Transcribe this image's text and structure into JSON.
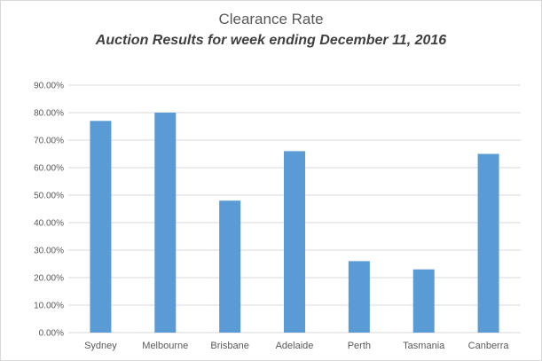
{
  "chart_data": {
    "type": "bar",
    "title": "Clearance Rate",
    "subtitle": "Auction Results for week ending December 11, 2016",
    "xlabel": "",
    "ylabel": "",
    "categories": [
      "Sydney",
      "Melbourne",
      "Brisbane",
      "Adelaide",
      "Perth",
      "Tasmania",
      "Canberra"
    ],
    "values": [
      77.0,
      80.0,
      48.0,
      66.0,
      26.0,
      23.0,
      65.0
    ],
    "ylim": [
      0,
      90
    ],
    "yticks": [
      "0.00%",
      "10.00%",
      "20.00%",
      "30.00%",
      "40.00%",
      "50.00%",
      "60.00%",
      "70.00%",
      "80.00%",
      "90.00%"
    ],
    "grid": true,
    "legend": "none",
    "bar_color": "#5b9bd5",
    "grid_color": "#d9d9d9"
  }
}
